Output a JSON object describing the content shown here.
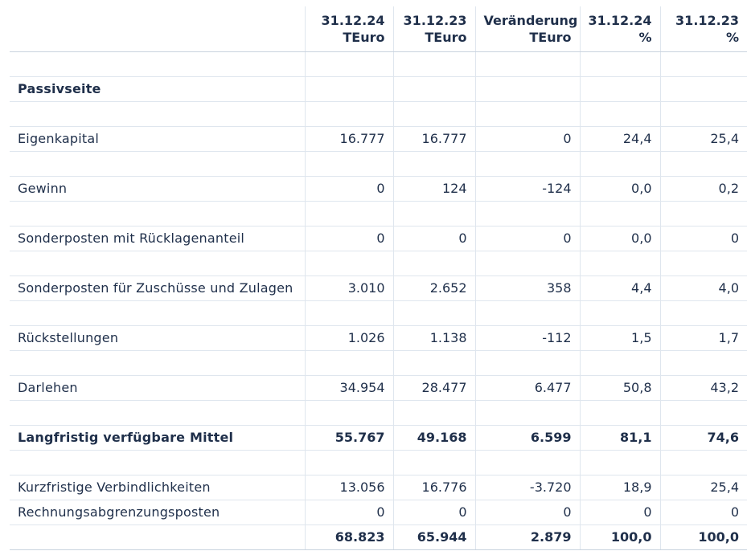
{
  "header": [
    {
      "line1": "",
      "line2": ""
    },
    {
      "line1": "31.12.24",
      "line2": "TEuro"
    },
    {
      "line1": "31.12.23",
      "line2": "TEuro"
    },
    {
      "line1": "Veränderung",
      "line2": "TEuro"
    },
    {
      "line1": "31.12.24",
      "line2": "%"
    },
    {
      "line1": "31.12.23",
      "line2": "%"
    }
  ],
  "rows": [
    {
      "type": "spacer"
    },
    {
      "type": "section",
      "label": "Passivseite",
      "values": [
        "",
        "",
        "",
        "",
        ""
      ]
    },
    {
      "type": "spacer"
    },
    {
      "type": "data",
      "label": "Eigenkapital",
      "values": [
        "16.777",
        "16.777",
        "0",
        "24,4",
        "25,4"
      ]
    },
    {
      "type": "spacer"
    },
    {
      "type": "data",
      "label": "Gewinn",
      "values": [
        "0",
        "124",
        "-124",
        "0,0",
        "0,2"
      ]
    },
    {
      "type": "spacer"
    },
    {
      "type": "data",
      "label": "Sonderposten mit Rücklagenanteil",
      "values": [
        "0",
        "0",
        "0",
        "0,0",
        "0"
      ]
    },
    {
      "type": "spacer"
    },
    {
      "type": "data",
      "label": "Sonderposten für Zuschüsse und Zulagen",
      "values": [
        "3.010",
        "2.652",
        "358",
        "4,4",
        "4,0"
      ]
    },
    {
      "type": "spacer"
    },
    {
      "type": "data",
      "label": "Rückstellungen",
      "values": [
        "1.026",
        "1.138",
        "-112",
        "1,5",
        "1,7"
      ]
    },
    {
      "type": "spacer"
    },
    {
      "type": "data",
      "label": "Darlehen",
      "values": [
        "34.954",
        "28.477",
        "6.477",
        "50,8",
        "43,2"
      ]
    },
    {
      "type": "spacer"
    },
    {
      "type": "bold",
      "label": "Langfristig verfügbare Mittel",
      "values": [
        "55.767",
        "49.168",
        "6.599",
        "81,1",
        "74,6"
      ]
    },
    {
      "type": "spacer"
    },
    {
      "type": "data",
      "label": "Kurzfristige Verbindlichkeiten",
      "values": [
        "13.056",
        "16.776",
        "-3.720",
        "18,9",
        "25,4"
      ]
    },
    {
      "type": "data",
      "label": "Rechnungsabgrenzungsposten",
      "values": [
        "0",
        "0",
        "0",
        "0",
        "0"
      ]
    },
    {
      "type": "total",
      "label": "",
      "values": [
        "68.823",
        "65.944",
        "2.879",
        "100,0",
        "100,0"
      ]
    }
  ]
}
